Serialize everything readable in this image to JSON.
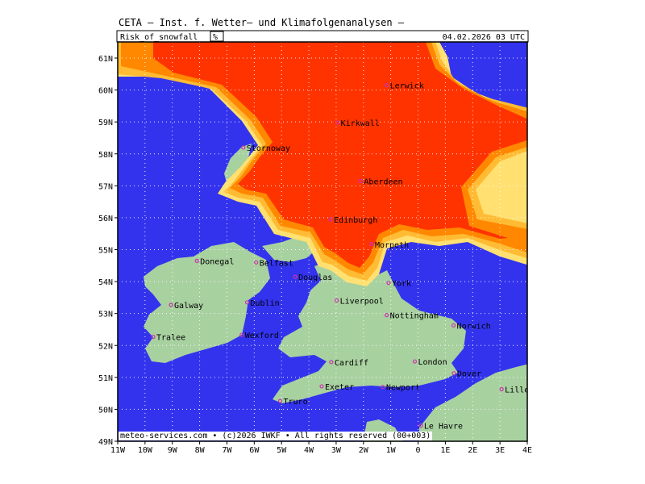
{
  "header": {
    "institute": "CETA – Inst. f. Wetter– und Klimafolgenanalysen –",
    "parameter": "Risk_of_snowfall",
    "unit": "%",
    "valid_time": "04.02.2026  03 UTC"
  },
  "footer": "meteo-services.com • (c)2026 IWKF • All rights reserved (00+003)",
  "axes": {
    "lat_labels": [
      "61N",
      "60N",
      "59N",
      "58N",
      "57N",
      "56N",
      "55N",
      "54N",
      "53N",
      "52N",
      "51N",
      "50N",
      "49N"
    ],
    "lon_labels": [
      "11W",
      "10W",
      "9W",
      "8W",
      "7W",
      "6W",
      "5W",
      "4W",
      "3W",
      "2W",
      "1W",
      "0",
      "1E",
      "2E",
      "3E",
      "4E"
    ]
  },
  "colors": {
    "sea": "#3333ee",
    "land": "#a8d1a0",
    "snow_high": "#ff3300",
    "snow_mid": "#ff8800",
    "snow_low": "#ffbb33",
    "snow_edge": "#ffe070",
    "city_marker": "#cc33aa"
  },
  "cities": [
    {
      "name": "Lerwick",
      "lon": -1.15,
      "lat": 60.15
    },
    {
      "name": "Kirkwall",
      "lon": -2.95,
      "lat": 58.98
    },
    {
      "name": "Stornoway",
      "lon": -6.4,
      "lat": 58.2
    },
    {
      "name": "Aberdeen",
      "lon": -2.1,
      "lat": 57.15
    },
    {
      "name": "Edinburgh",
      "lon": -3.2,
      "lat": 55.95
    },
    {
      "name": "Douglas",
      "lon": -4.5,
      "lat": 54.15
    },
    {
      "name": "Morpeth",
      "lon": -1.7,
      "lat": 55.17
    },
    {
      "name": "Donegal",
      "lon": -8.1,
      "lat": 54.65
    },
    {
      "name": "Belfast",
      "lon": -5.93,
      "lat": 54.6
    },
    {
      "name": "York",
      "lon": -1.08,
      "lat": 53.96
    },
    {
      "name": "Liverpool",
      "lon": -2.98,
      "lat": 53.41
    },
    {
      "name": "Galway",
      "lon": -9.05,
      "lat": 53.27
    },
    {
      "name": "Dublin",
      "lon": -6.26,
      "lat": 53.35
    },
    {
      "name": "Nottingham",
      "lon": -1.15,
      "lat": 52.95
    },
    {
      "name": "Norwich",
      "lon": 1.3,
      "lat": 52.63
    },
    {
      "name": "Tralee",
      "lon": -9.7,
      "lat": 52.27
    },
    {
      "name": "Wexford",
      "lon": -6.46,
      "lat": 52.33
    },
    {
      "name": "Cardiff",
      "lon": -3.18,
      "lat": 51.48
    },
    {
      "name": "London",
      "lon": -0.12,
      "lat": 51.5
    },
    {
      "name": "Dover",
      "lon": 1.31,
      "lat": 51.13
    },
    {
      "name": "Exeter",
      "lon": -3.53,
      "lat": 50.72
    },
    {
      "name": "Newport",
      "lon": -1.29,
      "lat": 50.7
    },
    {
      "name": "Truro",
      "lon": -5.05,
      "lat": 50.26
    },
    {
      "name": "Lille",
      "lon": 3.06,
      "lat": 50.63
    },
    {
      "name": "Le Havre",
      "lon": 0.1,
      "lat": 49.49
    }
  ]
}
